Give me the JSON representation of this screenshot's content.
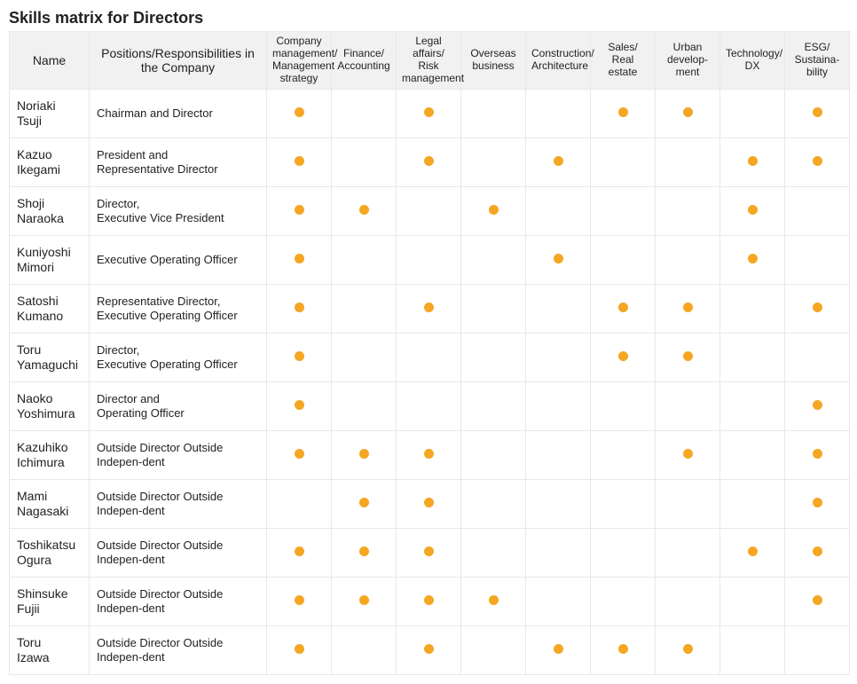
{
  "title": "Skills matrix for Directors",
  "dot_color": "#f5a623",
  "columns": [
    "Name",
    "Positions/Responsibilities in the Company",
    "Company management/ Management strategy",
    "Finance/ Accounting",
    "Legal affairs/ Risk management",
    "Overseas business",
    "Construction/ Architecture",
    "Sales/ Real estate",
    "Urban develop-ment",
    "Technology/ DX",
    "ESG/ Sustaina-bility"
  ],
  "rows": [
    {
      "name_l1": "Noriaki",
      "name_l2": "Tsuji",
      "position_l1": "Chairman and Director",
      "position_l2": "",
      "skills": [
        true,
        false,
        true,
        false,
        false,
        true,
        true,
        false,
        true
      ]
    },
    {
      "name_l1": "Kazuo",
      "name_l2": "Ikegami",
      "position_l1": "President and",
      "position_l2": "Representative Director",
      "skills": [
        true,
        false,
        true,
        false,
        true,
        false,
        false,
        true,
        true
      ]
    },
    {
      "name_l1": "Shoji",
      "name_l2": "Naraoka",
      "position_l1": "Director,",
      "position_l2": "Executive Vice President",
      "skills": [
        true,
        true,
        false,
        true,
        false,
        false,
        false,
        true,
        false
      ]
    },
    {
      "name_l1": "Kuniyoshi",
      "name_l2": "Mimori",
      "position_l1": "Executive Operating Officer",
      "position_l2": "",
      "skills": [
        true,
        false,
        false,
        false,
        true,
        false,
        false,
        true,
        false
      ]
    },
    {
      "name_l1": "Satoshi",
      "name_l2": "Kumano",
      "position_l1": "Representative Director,",
      "position_l2": "Executive Operating Officer",
      "skills": [
        true,
        false,
        true,
        false,
        false,
        true,
        true,
        false,
        true
      ]
    },
    {
      "name_l1": "Toru",
      "name_l2": "Yamaguchi",
      "position_l1": "Director,",
      "position_l2": "Executive Operating Officer",
      "skills": [
        true,
        false,
        false,
        false,
        false,
        true,
        true,
        false,
        false
      ]
    },
    {
      "name_l1": "Naoko",
      "name_l2": "Yoshimura",
      "position_l1": "Director and",
      "position_l2": "Operating Officer",
      "skills": [
        true,
        false,
        false,
        false,
        false,
        false,
        false,
        false,
        true
      ]
    },
    {
      "name_l1": "Kazuhiko",
      "name_l2": "Ichimura",
      "position_l1": "Outside Director Outside",
      "position_l2": "Indepen-dent",
      "skills": [
        true,
        true,
        true,
        false,
        false,
        false,
        true,
        false,
        true
      ]
    },
    {
      "name_l1": "Mami",
      "name_l2": "Nagasaki",
      "position_l1": "Outside Director Outside",
      "position_l2": "Indepen-dent",
      "skills": [
        false,
        true,
        true,
        false,
        false,
        false,
        false,
        false,
        true
      ]
    },
    {
      "name_l1": "Toshikatsu",
      "name_l2": "Ogura",
      "position_l1": "Outside Director Outside",
      "position_l2": "Indepen-dent",
      "skills": [
        true,
        true,
        true,
        false,
        false,
        false,
        false,
        true,
        true
      ]
    },
    {
      "name_l1": "Shinsuke",
      "name_l2": "Fujii",
      "position_l1": "Outside Director Outside",
      "position_l2": "Indepen-dent",
      "skills": [
        true,
        true,
        true,
        true,
        false,
        false,
        false,
        false,
        true
      ]
    },
    {
      "name_l1": "Toru",
      "name_l2": "Izawa",
      "position_l1": "Outside Director Outside",
      "position_l2": "Indepen-dent",
      "skills": [
        true,
        false,
        true,
        false,
        true,
        true,
        true,
        false,
        false
      ]
    }
  ]
}
